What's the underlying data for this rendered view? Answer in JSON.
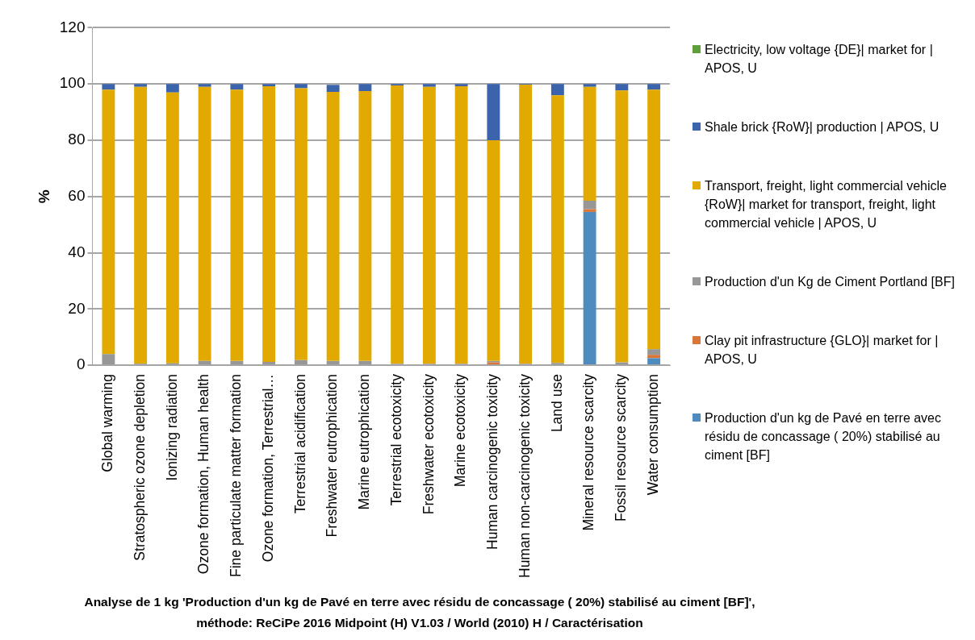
{
  "chart_data": {
    "type": "bar",
    "stacked": true,
    "title": "Analyse de 1 kg 'Production d'un kg de Pavé en terre avec résidu de concassage ( 20%) stabilisé au ciment [BF]', méthode: ReCiPe 2016 Midpoint (H) V1.03 / World (2010) H / Caractérisation",
    "ylabel": "%",
    "categories": [
      "Global warming",
      "Stratospheric ozone depletion",
      "Ionizing radiation",
      "Ozone formation, Human health",
      "Fine particulate matter formation",
      "Ozone formation, Terrestrial…",
      "Terrestrial acidification",
      "Freshwater eutrophication",
      "Marine eutrophication",
      "Terrestrial ecotoxicity",
      "Freshwater ecotoxicity",
      "Marine ecotoxicity",
      "Human carcinogenic toxicity",
      "Human non-carcinogenic toxicity",
      "Land use",
      "Mineral resource scarcity",
      "Fossil resource scarcity",
      "Water consumption"
    ],
    "ylim": [
      0,
      120
    ],
    "yticks": [
      0,
      20,
      40,
      60,
      80,
      100,
      120
    ],
    "grid": "y",
    "legend": "right",
    "series": [
      {
        "name": "Production d'un kg de Pavé en terre avec résidu de concassage ( 20%) stabilisé au ciment [BF]",
        "color": "#4e8bbf",
        "values": [
          0,
          0,
          0,
          0,
          0,
          0,
          0,
          0,
          0,
          0,
          0,
          0,
          0,
          0,
          0,
          54.5,
          0,
          2.5
        ]
      },
      {
        "name": "Clay pit infrastructure {GLO}| market for | APOS, U",
        "color": "#d9773a",
        "values": [
          0,
          0,
          0,
          0,
          0,
          0,
          0,
          0,
          0,
          0,
          0,
          0,
          1,
          0,
          0,
          1,
          0,
          1.2
        ]
      },
      {
        "name": "Production d'un Kg de Ciment Portland [BF]",
        "color": "#979797",
        "values": [
          4,
          0.5,
          0.7,
          1.5,
          1.5,
          1.2,
          1.8,
          1.5,
          1.5,
          0.5,
          0.5,
          0.5,
          0.5,
          0.5,
          0.8,
          3,
          1,
          2
        ]
      },
      {
        "name": "Transport, freight, light commercial vehicle {RoW}| market for transport, freight, light commercial vehicle | APOS, U",
        "color": "#e2aa00",
        "values": [
          94,
          98.5,
          96.3,
          97.5,
          96.5,
          98,
          96.7,
          95.7,
          96,
          99,
          98.5,
          98.7,
          78.5,
          99.3,
          95.2,
          40.5,
          96.7,
          92.3
        ]
      },
      {
        "name": "Shale brick {RoW}| production | APOS, U",
        "color": "#3b64ad",
        "values": [
          2,
          1,
          3,
          1,
          2,
          0.8,
          1.5,
          2.5,
          2.5,
          0.5,
          1,
          0.8,
          20,
          0.2,
          4,
          1,
          2.3,
          2
        ]
      },
      {
        "name": "Electricity, low voltage {DE}| market for | APOS, U",
        "color": "#5f9e3a",
        "values": [
          0,
          0,
          0,
          0,
          0,
          0,
          0,
          0,
          0,
          0,
          0,
          0,
          0,
          0,
          0,
          0,
          0,
          0
        ]
      }
    ]
  }
}
